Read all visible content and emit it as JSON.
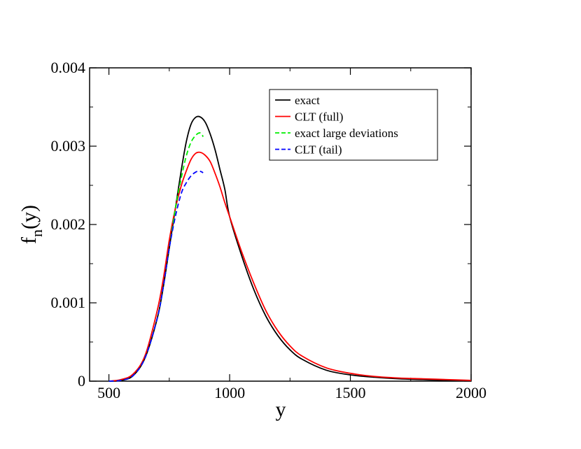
{
  "chart_data": {
    "type": "line",
    "xlabel": "y",
    "ylabel": {
      "main": "f",
      "sub": "n",
      "tail": "(y)"
    },
    "xlim": [
      420,
      2000
    ],
    "ylim": [
      0,
      0.004
    ],
    "x_ticks": [
      500,
      1000,
      1500,
      2000
    ],
    "x_tick_labels": [
      "500",
      "1000",
      "1500",
      "2000"
    ],
    "y_ticks": [
      0,
      0.001,
      0.002,
      0.003,
      0.004
    ],
    "y_tick_labels": [
      "0",
      "0.001",
      "0.002",
      "0.003",
      "0.004"
    ],
    "grid": false,
    "legend_position": "top-right",
    "series": [
      {
        "name": "exact",
        "color": "#000000",
        "dash": "solid",
        "x": [
          500,
          550,
          600,
          650,
          700,
          725,
          750,
          775,
          800,
          820,
          840,
          860,
          880,
          900,
          920,
          940,
          960,
          980,
          1000,
          1050,
          1100,
          1150,
          1200,
          1250,
          1300,
          1400,
          1500,
          1600,
          1700,
          1800,
          1900,
          2000
        ],
        "y": [
          0,
          1e-05,
          7e-05,
          0.0003,
          0.0008,
          0.0012,
          0.0017,
          0.0022,
          0.0027,
          0.00305,
          0.00328,
          0.00337,
          0.00337,
          0.0033,
          0.00315,
          0.00295,
          0.0027,
          0.00245,
          0.0021,
          0.0016,
          0.00117,
          0.00083,
          0.00058,
          0.0004,
          0.00028,
          0.00014,
          8e-05,
          5e-05,
          3e-05,
          2e-05,
          1e-05,
          5e-06
        ]
      },
      {
        "name": "CLT (full)",
        "color": "#ff0000",
        "dash": "solid",
        "x": [
          500,
          550,
          600,
          650,
          700,
          725,
          750,
          775,
          800,
          820,
          840,
          860,
          880,
          900,
          920,
          940,
          960,
          980,
          1000,
          1050,
          1100,
          1150,
          1200,
          1250,
          1300,
          1400,
          1500,
          1600,
          1700,
          1800,
          1900,
          2000
        ],
        "y": [
          0,
          2e-05,
          9e-05,
          0.00033,
          0.0009,
          0.0013,
          0.0018,
          0.0022,
          0.0025,
          0.00268,
          0.00283,
          0.00291,
          0.00292,
          0.00288,
          0.0028,
          0.00265,
          0.00248,
          0.00228,
          0.0021,
          0.00165,
          0.00125,
          0.0009,
          0.00064,
          0.00045,
          0.00032,
          0.00017,
          0.0001,
          6e-05,
          4e-05,
          3e-05,
          2e-05,
          1e-05
        ]
      },
      {
        "name": "exact large deviations",
        "color": "#00ee00",
        "dash": "dashed",
        "x": [
          500,
          550,
          600,
          650,
          700,
          725,
          750,
          775,
          800,
          820,
          840,
          860,
          875,
          885,
          890
        ],
        "y": [
          0,
          1e-05,
          7e-05,
          0.0003,
          0.0008,
          0.0012,
          0.0017,
          0.0022,
          0.0026,
          0.00287,
          0.00305,
          0.00314,
          0.00317,
          0.00315,
          0.00312
        ]
      },
      {
        "name": "CLT (tail)",
        "color": "#0000ff",
        "dash": "dashed",
        "x": [
          500,
          550,
          600,
          650,
          700,
          725,
          750,
          775,
          800,
          820,
          840,
          860,
          875,
          885,
          890
        ],
        "y": [
          0,
          1e-05,
          7e-05,
          0.0003,
          0.0008,
          0.0012,
          0.0017,
          0.0021,
          0.0024,
          0.00253,
          0.00262,
          0.00267,
          0.00268,
          0.00267,
          0.00266
        ]
      }
    ]
  }
}
